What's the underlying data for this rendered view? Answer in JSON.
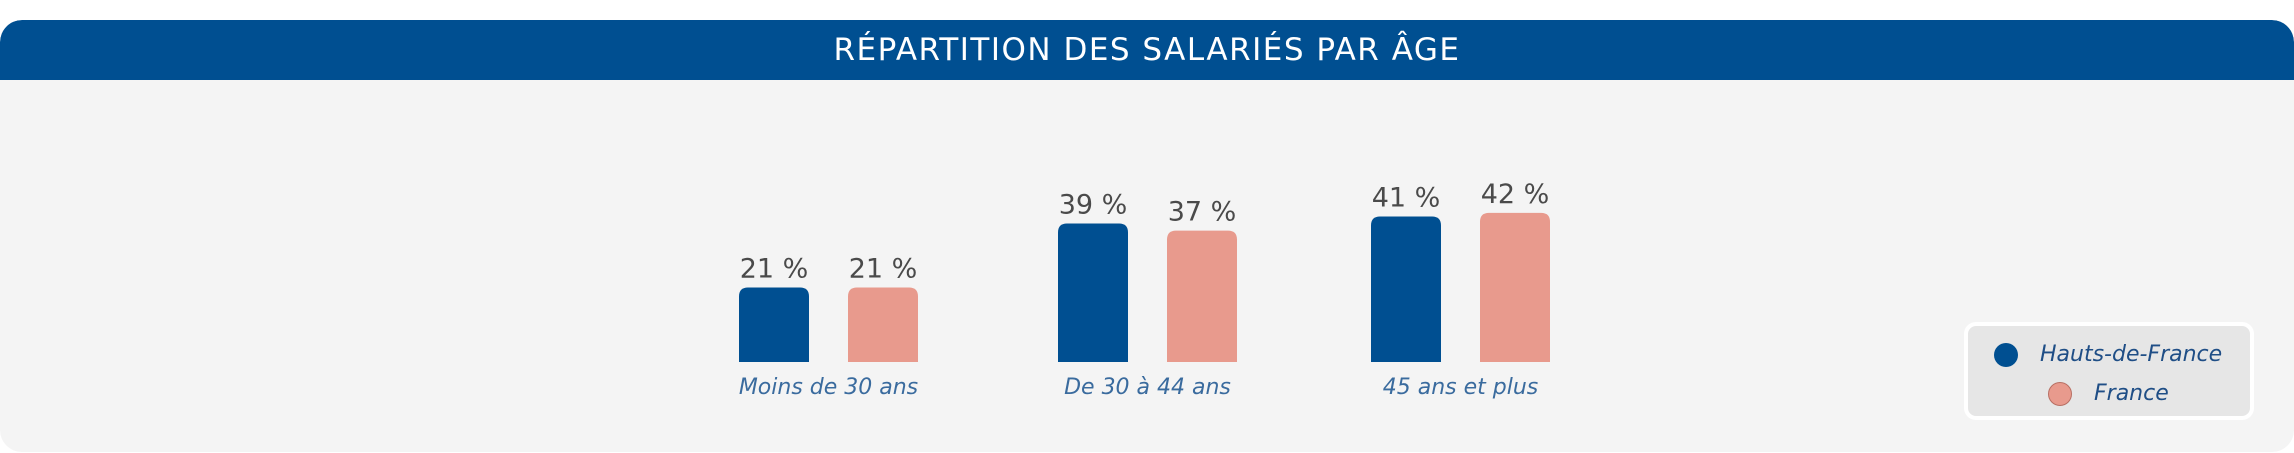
{
  "header": {
    "title": "RÉPARTITION DES SALARIÉS PAR ÂGE"
  },
  "colors": {
    "header_bg": "#004f91",
    "series_1": "#004f91",
    "series_2": "#e89a8d"
  },
  "legend": {
    "items": [
      {
        "label": "Hauts-de-France",
        "color": "#004f91"
      },
      {
        "label": "France",
        "color": "#e89a8d"
      }
    ]
  },
  "chart_data": {
    "type": "bar",
    "title": "RÉPARTITION DES SALARIÉS PAR ÂGE",
    "categories": [
      "Moins de 30 ans",
      "De 30 à 44 ans",
      "45 ans et plus"
    ],
    "series": [
      {
        "name": "Hauts-de-France",
        "values": [
          21,
          39,
          41
        ],
        "labels": [
          "21 %",
          "39 %",
          "41 %"
        ]
      },
      {
        "name": "France",
        "values": [
          21,
          37,
          42
        ],
        "labels": [
          "21 %",
          "37 %",
          "42 %"
        ]
      }
    ],
    "unit": "%",
    "grid": false,
    "legend_position": "bottom-right"
  }
}
